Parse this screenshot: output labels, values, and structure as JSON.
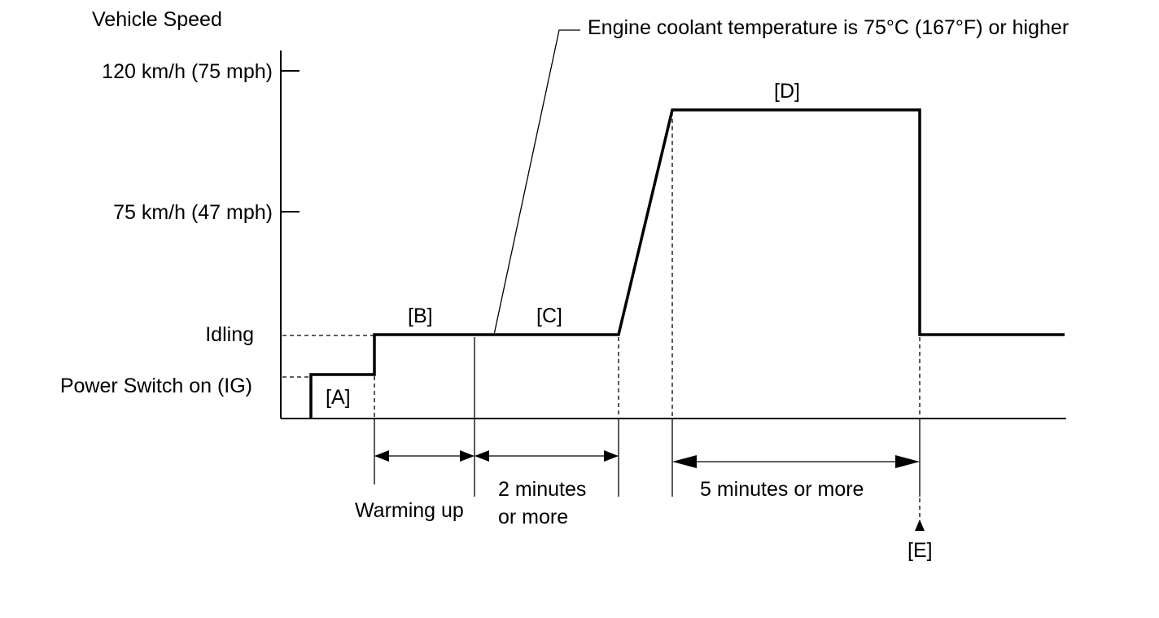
{
  "y_axis": {
    "title": "Vehicle Speed",
    "levels": [
      "120 km/h (75 mph)",
      "75 km/h (47 mph)",
      "Idling",
      "Power Switch on (IG)"
    ]
  },
  "callout": "Engine coolant temperature is 75°C (167°F) or higher",
  "phase_labels": [
    "[A]",
    "[B]",
    "[C]",
    "[D]",
    "[E]"
  ],
  "durations": {
    "warming_up": "Warming up",
    "two_min_line1": "2 minutes",
    "two_min_line2": "or more",
    "five_min": "5 minutes or more"
  },
  "colors": {
    "line": "#000000",
    "background": "#ffffff"
  }
}
